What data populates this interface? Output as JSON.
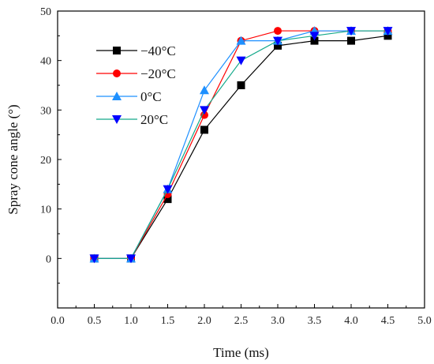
{
  "chart_data": {
    "type": "line",
    "xlabel": "Time (ms)",
    "ylabel": "Spray cone angle (°)",
    "xlim": [
      0.0,
      5.0
    ],
    "ylim": [
      -10,
      50
    ],
    "x_ticks": [
      "0.0",
      "0.5",
      "1.0",
      "1.5",
      "2.0",
      "2.5",
      "3.0",
      "3.5",
      "4.0",
      "4.5",
      "5.0"
    ],
    "y_ticks": [
      "0",
      "10",
      "20",
      "30",
      "40",
      "50"
    ],
    "grid": false,
    "legend_position": "top-left",
    "x": [
      0.5,
      1.0,
      1.5,
      2.0,
      2.5,
      3.0,
      3.5,
      4.0,
      4.5
    ],
    "series": [
      {
        "name": "−40°C",
        "color": "#000000",
        "marker": "square",
        "values": [
          0,
          0,
          12,
          26,
          35,
          43,
          44,
          44,
          45
        ]
      },
      {
        "name": "−20°C",
        "color": "#ff0000",
        "marker": "circle",
        "values": [
          0,
          0,
          13,
          29,
          44,
          46,
          46,
          46,
          46
        ]
      },
      {
        "name": "0°C",
        "color": "#1e90ff",
        "marker": "triangle-up",
        "values": [
          0,
          0,
          14,
          34,
          44,
          44,
          46,
          46,
          46
        ]
      },
      {
        "name": "20°C",
        "color": "#0000ff",
        "line_color": "#14a98a",
        "marker": "triangle-down",
        "values": [
          0,
          0,
          14,
          30,
          40,
          44,
          45,
          46,
          46
        ]
      }
    ]
  }
}
